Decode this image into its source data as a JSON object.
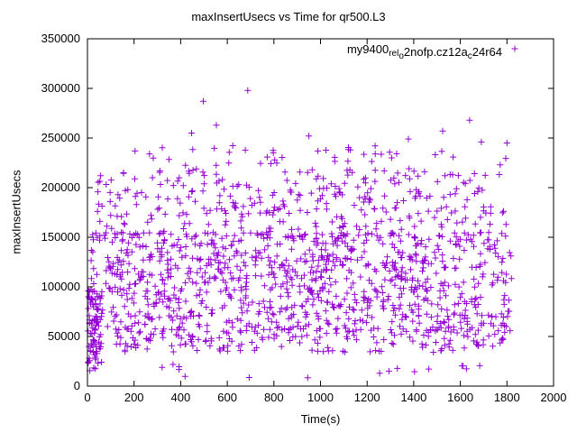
{
  "page": {
    "background": "#ffffff"
  },
  "chart_data": {
    "type": "scatter",
    "title": "maxInsertUsecs vs Time for qr500.L3",
    "xlabel": "Time(s)",
    "ylabel": "maxInsertUsecs",
    "xlim": [
      0,
      2000
    ],
    "ylim": [
      0,
      350000
    ],
    "xticks": [
      0,
      200,
      400,
      600,
      800,
      1000,
      1200,
      1400,
      1600,
      1800,
      2000
    ],
    "yticks": [
      0,
      50000,
      100000,
      150000,
      200000,
      250000,
      300000,
      350000
    ],
    "grid": false,
    "marker": {
      "shape": "plus",
      "color": "#9400d3",
      "size": 7
    },
    "legend": {
      "position": "top-right-inside",
      "name": "my9400_rel_o2nofp.cz12a_c24r64",
      "segments": [
        {
          "text": "my9400"
        },
        {
          "text": "rel",
          "sub": true
        },
        {
          "text": "o",
          "sub": true
        },
        {
          "text": "2nofp.cz12a"
        },
        {
          "text": "c",
          "sub": true
        },
        {
          "text": "24r64"
        }
      ]
    },
    "series": [
      {
        "name": "my9400_rel_o2nofp.cz12a_c24r64",
        "sampling": "distribution-estimate",
        "seed": 7,
        "bands": [
          {
            "count": 950,
            "x": [
              15,
              1820
            ],
            "y": [
              55000,
              155000
            ]
          },
          {
            "count": 180,
            "x": [
              15,
              1820
            ],
            "y": [
              34000,
              58000
            ]
          },
          {
            "count": 300,
            "x": [
              40,
              1820
            ],
            "y": [
              150000,
              216000
            ]
          },
          {
            "count": 60,
            "x": [
              150,
              1805
            ],
            "y": [
              214000,
              244000
            ]
          },
          {
            "count": 16,
            "x": [
              60,
              1700
            ],
            "y": [
              8000,
              22000
            ]
          },
          {
            "count": 70,
            "x": [
              2,
              62
            ],
            "y": [
              15000,
              98000
            ]
          }
        ],
        "outliers": [
          [
            497,
            287000
          ],
          [
            688,
            298000
          ],
          [
            553,
            263000
          ],
          [
            1640,
            268000
          ],
          [
            447,
            255000
          ],
          [
            950,
            252000
          ],
          [
            1377,
            249000
          ],
          [
            1690,
            246000
          ],
          [
            1524,
            257000
          ],
          [
            1800,
            245000
          ]
        ]
      }
    ]
  }
}
